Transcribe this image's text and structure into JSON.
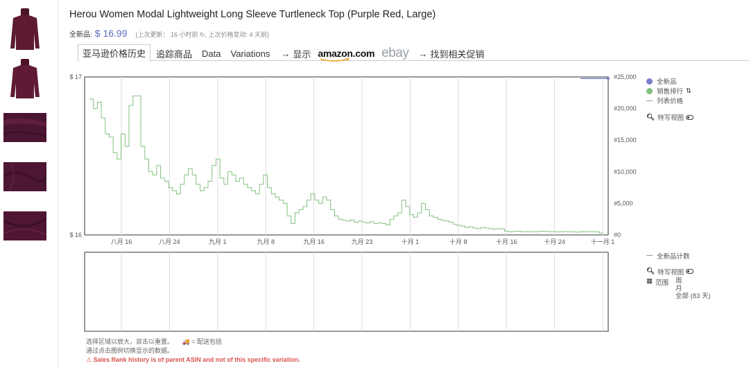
{
  "product": {
    "title": "Herou Women Modal Lightweight Long Sleeve Turtleneck Top (Purple Red, Large)",
    "price_label": "全新品:",
    "price": "$ 16.99",
    "update_meta": "(上次更新： 16 小时前 ↻, 上次价格变动: 4 天前)"
  },
  "tabs": [
    {
      "label": "亚马逊价格历史"
    },
    {
      "label": "追踪商品"
    },
    {
      "label": "Data"
    },
    {
      "label": "Variations"
    }
  ],
  "links": {
    "show_arrow": "→",
    "show_label": "显示",
    "amazon": "amazon.com",
    "ebay": "ebay",
    "deals_arrow": "→",
    "deals_label": "找到相关促销"
  },
  "legend": {
    "new": "全新品",
    "sales_rank": "销售排行",
    "sort_icon": "⇅",
    "list_price": "列表价格",
    "closeup": "特写视图",
    "offer_count": "全新品计数",
    "closeup2": "特写视图",
    "range_label": "范围",
    "range_week": "周",
    "range_month": "月",
    "range_all": "全部 (83 天)"
  },
  "colors": {
    "new": "#7b7fd1",
    "sales_rank": "#82c07e",
    "list_price": "#999999",
    "warning": "#d9534f"
  },
  "footer": {
    "line1": "选择区域以放大，双击以重置。",
    "truck_note": "= 配送包括",
    "line2": "通过点击图例切换显示的数据。",
    "warning": "⚠ Sales Rank history is of parent ASIN and not of this specific variation."
  },
  "chart_data": {
    "type": "line",
    "x_tick_labels": [
      "八月 16",
      "八月 24",
      "九月 1",
      "九月 8",
      "九月 16",
      "九月 23",
      "十月 1",
      "十月 8",
      "十月 16",
      "十月 24",
      "十一月 1"
    ],
    "y_left_ticks": [
      "$ 17",
      "$ 16"
    ],
    "y_right_ticks": [
      "#25,000",
      "#20,000",
      "#15,000",
      "#10,000",
      "#5,000",
      "#0"
    ],
    "ylim_price": [
      16,
      17
    ],
    "ylim_rank": [
      0,
      25000
    ],
    "days_range": 83,
    "series": [
      {
        "name": "销售排行",
        "color": "#82c07e",
        "values": [
          21500,
          20000,
          21000,
          18500,
          16000,
          15500,
          13000,
          12000,
          16000,
          14000,
          20500,
          22000,
          22000,
          14000,
          12000,
          10000,
          9500,
          11000,
          9000,
          8500,
          7500,
          7000,
          6500,
          8000,
          9500,
          10500,
          9500,
          8000,
          7000,
          7500,
          8500,
          11000,
          12000,
          9000,
          8000,
          10000,
          9500,
          8500,
          9000,
          8000,
          7500,
          7000,
          6500,
          8000,
          9500,
          7500,
          6500,
          6000,
          5500,
          5000,
          3000,
          1800,
          3500,
          4000,
          4500,
          5500,
          6500,
          5500,
          5000,
          6000,
          5500,
          4000,
          3000,
          2500,
          2300,
          2200,
          2400,
          2000,
          2200,
          2000,
          1900,
          2100,
          1800,
          1900,
          1800,
          1600,
          2500,
          3000,
          3500,
          5500,
          4500,
          3200,
          2800,
          3500,
          5000,
          4000,
          3000,
          2800,
          2500,
          2300,
          2200,
          2000,
          1700,
          1500,
          1400,
          1200,
          1300,
          1100,
          1000,
          1200,
          1100,
          1000,
          900,
          1000,
          950,
          600,
          500,
          550,
          600,
          500,
          520,
          500,
          480,
          520,
          600,
          550,
          500,
          520,
          480,
          500,
          520,
          500,
          480,
          450,
          500,
          480,
          520,
          500,
          480,
          300,
          250
        ]
      },
      {
        "name": "全新品",
        "color": "#7b7fd1",
        "values": [
          16.99
        ]
      }
    ]
  }
}
